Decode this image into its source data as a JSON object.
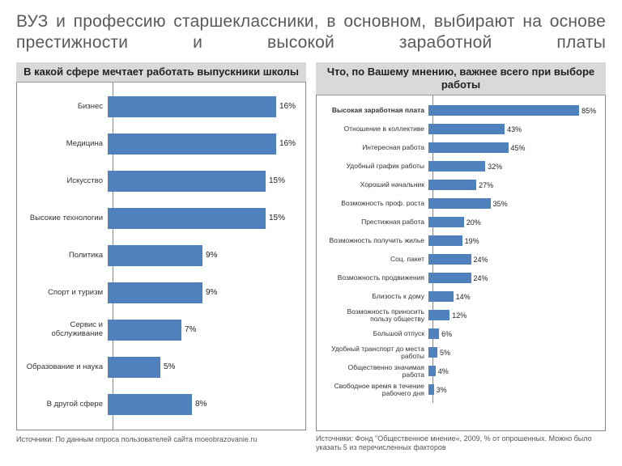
{
  "title": "ВУЗ и профессию старшеклассники, в основном, выбирают на основе престижности и высокой заработной платы",
  "background": "#ffffff",
  "bar_color": "#4f81bd",
  "header_bg": "#d9d9d9",
  "border_color": "#888888",
  "left": {
    "title": "В какой сфере мечтает работать выпускники школы",
    "max_value": 18,
    "items": [
      {
        "label": "Бизнес",
        "value": 16,
        "value_label": "16%"
      },
      {
        "label": "Медицина",
        "value": 16,
        "value_label": "16%"
      },
      {
        "label": "Искусство",
        "value": 15,
        "value_label": "15%"
      },
      {
        "label": "Высокие технологии",
        "value": 15,
        "value_label": "15%"
      },
      {
        "label": "Политика",
        "value": 9,
        "value_label": "9%"
      },
      {
        "label": "Спорт и туризм",
        "value": 9,
        "value_label": "9%"
      },
      {
        "label": "Сервис и обслуживание",
        "value": 7,
        "value_label": "7%"
      },
      {
        "label": "Образование и наука",
        "value": 5,
        "value_label": "5%"
      },
      {
        "label": "В другой сфере",
        "value": 8,
        "value_label": "8%"
      }
    ],
    "source": "Источники: По данным опроса пользователей сайта moeobrazovanie.ru"
  },
  "right": {
    "title": "Что, по Вашему мнению, важнее всего при выборе работы",
    "max_value": 95,
    "items": [
      {
        "label": "Высокая заработная плата",
        "value": 85,
        "value_label": "85%",
        "bold": true
      },
      {
        "label": "Отношение в коллективе",
        "value": 43,
        "value_label": "43%"
      },
      {
        "label": "Интересная работа",
        "value": 45,
        "value_label": "45%"
      },
      {
        "label": "Удобный график работы",
        "value": 32,
        "value_label": "32%"
      },
      {
        "label": "Хороший начальник",
        "value": 27,
        "value_label": "27%"
      },
      {
        "label": "Возможность проф. роста",
        "value": 35,
        "value_label": "35%"
      },
      {
        "label": "Престижная работа",
        "value": 20,
        "value_label": "20%"
      },
      {
        "label": "Возможность получить жилье",
        "value": 19,
        "value_label": "19%"
      },
      {
        "label": "Соц. пакет",
        "value": 24,
        "value_label": "24%"
      },
      {
        "label": "Возможность продвижения",
        "value": 24,
        "value_label": "24%"
      },
      {
        "label": "Близость к дому",
        "value": 14,
        "value_label": "14%"
      },
      {
        "label": "Возможность приносить пользу обществу",
        "value": 12,
        "value_label": "12%"
      },
      {
        "label": "Большой отпуск",
        "value": 6,
        "value_label": "6%"
      },
      {
        "label": "Удобный транспорт до места работы",
        "value": 5,
        "value_label": "5%"
      },
      {
        "label": "Общественно значимая работа",
        "value": 4,
        "value_label": "4%"
      },
      {
        "label": "Свободное время в течение рабочего дня",
        "value": 3,
        "value_label": "3%"
      }
    ],
    "source": "Источники: Фонд \"Общественное мнение«, 2009, % от опрошенных. Можно было указать 5 из перечисленных факторов"
  }
}
